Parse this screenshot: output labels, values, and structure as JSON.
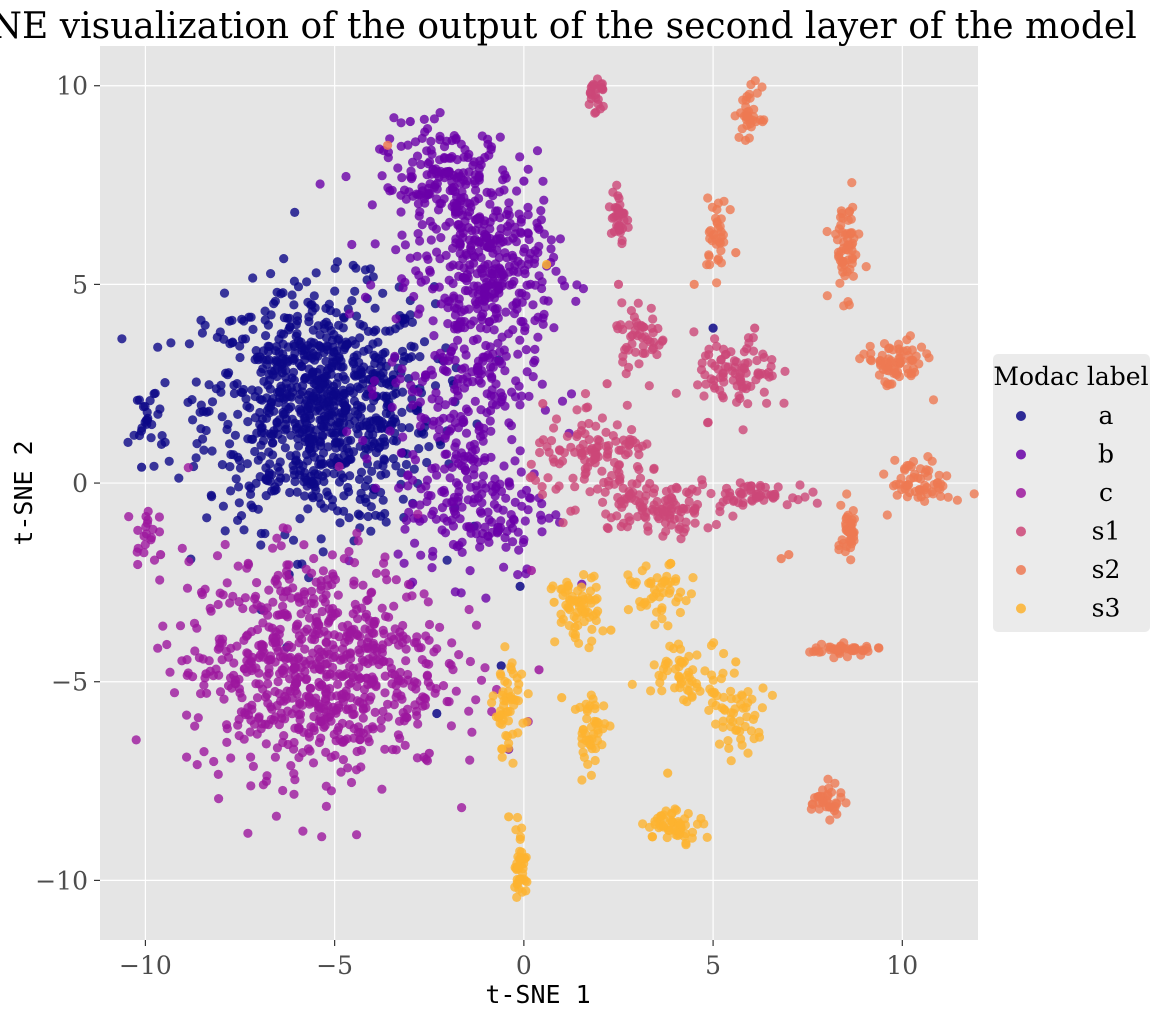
{
  "chart_data": {
    "type": "scatter",
    "title": "t-SNE visualization of the output of the second layer of the model",
    "xlabel": "t-SNE 1",
    "ylabel": "t-SNE 2",
    "xlim": [
      -11.2,
      12.0
    ],
    "ylim": [
      -11.5,
      11.0
    ],
    "xticks": [
      -10,
      -5,
      0,
      5,
      10
    ],
    "yticks": [
      -10,
      -5,
      0,
      5,
      10
    ],
    "xtick_labels": [
      "−10",
      "−5",
      "0",
      "5",
      "10"
    ],
    "ytick_labels": [
      "−10",
      "−5",
      "0",
      "5",
      "10"
    ],
    "grid": true,
    "legend": {
      "title": "Modac label",
      "placement": "right"
    },
    "colors": {
      "panel_background": "#e5e5e5",
      "grid": "#ffffff",
      "a": "#0d0887",
      "b": "#6a00a8",
      "c": "#9c179e",
      "s1": "#cc4778",
      "s2": "#ed7953",
      "s3": "#fdb32f"
    },
    "series": [
      {
        "name": "a",
        "color": "#0d0887",
        "clusters": [
          {
            "cx": -5.4,
            "cy": 1.9,
            "sx": 1.5,
            "sy": 1.5,
            "n": 900
          },
          {
            "cx": -9.9,
            "cy": 1.6,
            "sx": 0.25,
            "sy": 0.45,
            "n": 25
          }
        ],
        "points": [
          [
            -10.1,
            0.4
          ],
          [
            -6.2,
            -2.3
          ],
          [
            -0.1,
            -2.6
          ],
          [
            -0.6,
            -4.6
          ],
          [
            5.0,
            3.9
          ],
          [
            -2.3,
            -5.8
          ]
        ]
      },
      {
        "name": "b",
        "color": "#6a00a8",
        "clusters": [
          {
            "cx": -2.0,
            "cy": 7.4,
            "sx": 0.9,
            "sy": 0.8,
            "n": 220
          },
          {
            "cx": -0.8,
            "cy": 5.3,
            "sx": 0.8,
            "sy": 1.0,
            "n": 260
          },
          {
            "cx": -1.6,
            "cy": 2.6,
            "sx": 1.0,
            "sy": 1.3,
            "n": 220
          },
          {
            "cx": -1.3,
            "cy": -0.6,
            "sx": 1.0,
            "sy": 0.9,
            "n": 180
          }
        ],
        "points": [
          [
            0.0,
            7.6
          ],
          [
            -0.4,
            -6.7
          ],
          [
            -3.0,
            9.1
          ]
        ]
      },
      {
        "name": "c",
        "color": "#9c179e",
        "clusters": [
          {
            "cx": -5.5,
            "cy": -4.6,
            "sx": 1.7,
            "sy": 1.4,
            "n": 760
          },
          {
            "cx": -10.0,
            "cy": -1.2,
            "sx": 0.15,
            "sy": 0.4,
            "n": 20
          }
        ],
        "points": [
          [
            -9.6,
            -1.8
          ],
          [
            -8.4,
            -4.8
          ],
          [
            0.4,
            -4.7
          ],
          [
            -2.5,
            -6.8
          ],
          [
            0.2,
            -2.2
          ]
        ]
      },
      {
        "name": "s1",
        "color": "#cc4778",
        "clusters": [
          {
            "cx": 1.9,
            "cy": 9.8,
            "sx": 0.12,
            "sy": 0.25,
            "n": 25
          },
          {
            "cx": 2.5,
            "cy": 6.7,
            "sx": 0.1,
            "sy": 0.45,
            "n": 35
          },
          {
            "cx": 3.1,
            "cy": 3.7,
            "sx": 0.35,
            "sy": 0.4,
            "n": 50
          },
          {
            "cx": 5.6,
            "cy": 2.7,
            "sx": 0.55,
            "sy": 0.5,
            "n": 90
          },
          {
            "cx": 2.0,
            "cy": 0.6,
            "sx": 0.9,
            "sy": 0.5,
            "n": 120
          },
          {
            "cx": 3.5,
            "cy": -0.6,
            "sx": 0.9,
            "sy": 0.35,
            "n": 110
          },
          {
            "cx": 6.0,
            "cy": -0.3,
            "sx": 0.55,
            "sy": 0.12,
            "n": 50
          }
        ],
        "points": [
          [
            2.5,
            5.0
          ],
          [
            6.1,
            3.9
          ],
          [
            0.5,
            2.0
          ],
          [
            2.2,
            2.5
          ]
        ]
      },
      {
        "name": "s2",
        "color": "#ed7953",
        "clusters": [
          {
            "cx": 6.0,
            "cy": 9.3,
            "sx": 0.15,
            "sy": 0.35,
            "n": 35
          },
          {
            "cx": 5.1,
            "cy": 6.2,
            "sx": 0.15,
            "sy": 0.5,
            "n": 35
          },
          {
            "cx": 8.5,
            "cy": 5.9,
            "sx": 0.2,
            "sy": 0.6,
            "n": 60
          },
          {
            "cx": 9.8,
            "cy": 3.0,
            "sx": 0.4,
            "sy": 0.3,
            "n": 70
          },
          {
            "cx": 10.5,
            "cy": 0.0,
            "sx": 0.4,
            "sy": 0.3,
            "n": 60
          },
          {
            "cx": 8.6,
            "cy": -1.2,
            "sx": 0.1,
            "sy": 0.4,
            "n": 40
          },
          {
            "cx": 8.4,
            "cy": -4.2,
            "sx": 0.5,
            "sy": 0.07,
            "n": 45
          },
          {
            "cx": 8.0,
            "cy": -8.0,
            "sx": 0.2,
            "sy": 0.2,
            "n": 35
          }
        ],
        "points": [
          [
            -3.6,
            8.5
          ],
          [
            4.5,
            5.0
          ],
          [
            5.6,
            5.8
          ],
          [
            7.0,
            -1.8
          ],
          [
            6.8,
            -1.9
          ]
        ]
      },
      {
        "name": "s3",
        "color": "#fdb32f",
        "clusters": [
          {
            "cx": 1.4,
            "cy": -3.2,
            "sx": 0.3,
            "sy": 0.45,
            "n": 70
          },
          {
            "cx": -0.4,
            "cy": -5.6,
            "sx": 0.2,
            "sy": 0.6,
            "n": 55
          },
          {
            "cx": 3.6,
            "cy": -2.8,
            "sx": 0.4,
            "sy": 0.35,
            "n": 50
          },
          {
            "cx": 4.4,
            "cy": -4.8,
            "sx": 0.6,
            "sy": 0.4,
            "n": 65
          },
          {
            "cx": 1.8,
            "cy": -6.3,
            "sx": 0.2,
            "sy": 0.5,
            "n": 45
          },
          {
            "cx": 5.7,
            "cy": -5.9,
            "sx": 0.35,
            "sy": 0.4,
            "n": 45
          },
          {
            "cx": 4.0,
            "cy": -8.6,
            "sx": 0.4,
            "sy": 0.2,
            "n": 55
          },
          {
            "cx": -0.1,
            "cy": -9.6,
            "sx": 0.08,
            "sy": 0.5,
            "n": 40
          }
        ],
        "points": [
          [
            0.6,
            5.5
          ],
          [
            0.8,
            -3.0
          ],
          [
            2.3,
            -3.7
          ],
          [
            1.0,
            -5.4
          ],
          [
            3.8,
            -7.3
          ],
          [
            5.6,
            -4.5
          ],
          [
            -0.4,
            -8.4
          ]
        ]
      }
    ]
  }
}
